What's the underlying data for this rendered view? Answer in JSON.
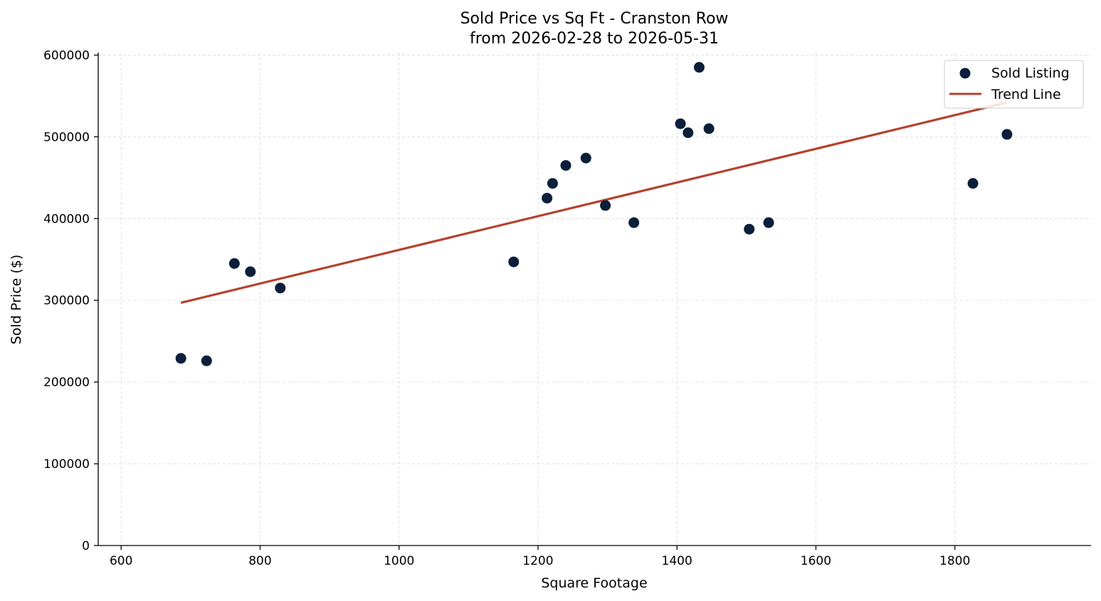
{
  "chart_data": {
    "type": "scatter",
    "title": "Sold Price vs Sq Ft - Cranston Row",
    "subtitle": "from 2026-02-28 to 2026-05-31",
    "xlabel": "Square Footage",
    "ylabel": "Sold Price ($)",
    "xlim": [
      567,
      1996
    ],
    "ylim": [
      0,
      603000
    ],
    "x_ticks": [
      600,
      800,
      1000,
      1200,
      1400,
      1600,
      1800
    ],
    "y_ticks": [
      0,
      100000,
      200000,
      300000,
      400000,
      500000,
      600000
    ],
    "grid": true,
    "legend_position": "top-right",
    "colors": {
      "points": "#0b1f3a",
      "trend": "#b5412f"
    },
    "series": [
      {
        "name": "Sold Listing",
        "kind": "scatter",
        "points": [
          {
            "x": 686,
            "y": 229000
          },
          {
            "x": 723,
            "y": 226000
          },
          {
            "x": 763,
            "y": 345000
          },
          {
            "x": 786,
            "y": 335000
          },
          {
            "x": 829,
            "y": 315000
          },
          {
            "x": 1165,
            "y": 347000
          },
          {
            "x": 1213,
            "y": 425000
          },
          {
            "x": 1221,
            "y": 443000
          },
          {
            "x": 1240,
            "y": 465000
          },
          {
            "x": 1269,
            "y": 474000
          },
          {
            "x": 1297,
            "y": 416000
          },
          {
            "x": 1338,
            "y": 395000
          },
          {
            "x": 1405,
            "y": 516000
          },
          {
            "x": 1416,
            "y": 505000
          },
          {
            "x": 1432,
            "y": 585000
          },
          {
            "x": 1446,
            "y": 510000
          },
          {
            "x": 1504,
            "y": 387000
          },
          {
            "x": 1532,
            "y": 395000
          },
          {
            "x": 1826,
            "y": 443000
          },
          {
            "x": 1875,
            "y": 503000
          }
        ]
      },
      {
        "name": "Trend Line",
        "kind": "line",
        "points": [
          {
            "x": 686,
            "y": 297000
          },
          {
            "x": 1875,
            "y": 542000
          }
        ]
      }
    ]
  }
}
